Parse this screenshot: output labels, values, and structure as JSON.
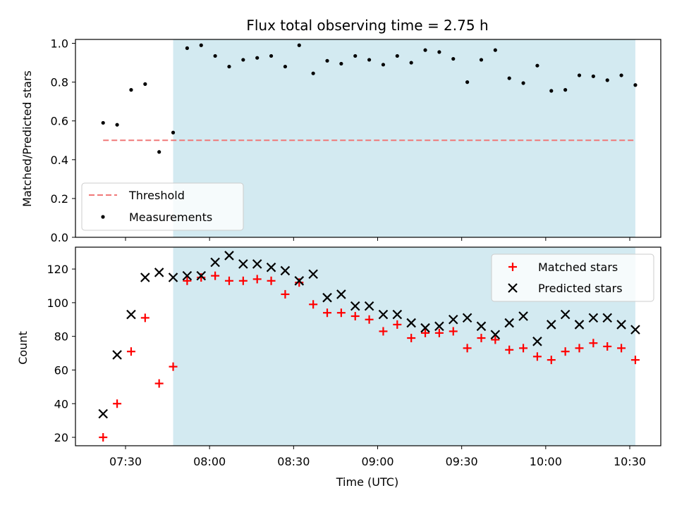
{
  "chart_data": [
    {
      "type": "scatter",
      "title": "Flux total observing time = 2.75 h",
      "xlabel": "",
      "ylabel": "Matched/Predicted stars",
      "ylim": [
        0,
        1.02
      ],
      "yticks": [
        "0.0",
        "0.2",
        "0.4",
        "0.6",
        "0.8",
        "1.0"
      ],
      "shaded_interval": [
        "07:47",
        "10:32"
      ],
      "shade_color": "#d3eaf1",
      "legend": {
        "position": "lower-left",
        "entries": [
          "Threshold",
          "Measurements"
        ]
      },
      "series": [
        {
          "name": "Threshold",
          "style": "dashed-line",
          "color": "#f07878",
          "x": [
            "07:22",
            "10:32"
          ],
          "y": [
            0.5,
            0.5
          ]
        },
        {
          "name": "Measurements",
          "style": "dot",
          "color": "#000000",
          "x": [
            "07:22",
            "07:27",
            "07:32",
            "07:37",
            "07:42",
            "07:47",
            "07:52",
            "07:57",
            "08:02",
            "08:07",
            "08:12",
            "08:17",
            "08:22",
            "08:27",
            "08:32",
            "08:37",
            "08:42",
            "08:47",
            "08:52",
            "08:57",
            "09:02",
            "09:07",
            "09:12",
            "09:17",
            "09:22",
            "09:27",
            "09:32",
            "09:37",
            "09:42",
            "09:47",
            "09:52",
            "09:57",
            "10:02",
            "10:07",
            "10:12",
            "10:17",
            "10:22",
            "10:27",
            "10:32"
          ],
          "y": [
            0.59,
            0.58,
            0.76,
            0.79,
            0.44,
            0.54,
            0.975,
            0.99,
            0.935,
            0.88,
            0.915,
            0.925,
            0.935,
            0.88,
            0.99,
            0.845,
            0.91,
            0.895,
            0.935,
            0.915,
            0.89,
            0.935,
            0.9,
            0.965,
            0.955,
            0.92,
            0.8,
            0.915,
            0.965,
            0.82,
            0.795,
            0.885,
            0.755,
            0.76,
            0.835,
            0.83,
            0.81,
            0.835,
            0.785
          ]
        }
      ]
    },
    {
      "type": "scatter",
      "title": "",
      "xlabel": "Time (UTC)",
      "ylabel": "Count",
      "ylim": [
        15,
        133
      ],
      "yticks": [
        "20",
        "40",
        "60",
        "80",
        "100",
        "120"
      ],
      "xticks": [
        "07:30",
        "08:00",
        "08:30",
        "09:00",
        "09:30",
        "10:00",
        "10:30"
      ],
      "shaded_interval": [
        "07:47",
        "10:32"
      ],
      "shade_color": "#d3eaf1",
      "legend": {
        "position": "top-right",
        "entries": [
          "Matched stars",
          "Predicted stars"
        ]
      },
      "series": [
        {
          "name": "Matched stars",
          "marker": "plus",
          "color": "#ff0000",
          "x": [
            "07:22",
            "07:27",
            "07:32",
            "07:37",
            "07:42",
            "07:47",
            "07:52",
            "07:57",
            "08:02",
            "08:07",
            "08:12",
            "08:17",
            "08:22",
            "08:27",
            "08:32",
            "08:37",
            "08:42",
            "08:47",
            "08:52",
            "08:57",
            "09:02",
            "09:07",
            "09:12",
            "09:17",
            "09:22",
            "09:27",
            "09:32",
            "09:37",
            "09:42",
            "09:47",
            "09:52",
            "09:57",
            "10:02",
            "10:07",
            "10:12",
            "10:17",
            "10:22",
            "10:27",
            "10:32"
          ],
          "y": [
            20,
            40,
            71,
            91,
            52,
            62,
            113,
            115,
            116,
            113,
            113,
            114,
            113,
            105,
            112,
            99,
            94,
            94,
            92,
            90,
            83,
            87,
            79,
            82,
            82,
            83,
            73,
            79,
            78,
            72,
            73,
            68,
            66,
            71,
            73,
            76,
            74,
            73,
            66
          ]
        },
        {
          "name": "Predicted stars",
          "marker": "x",
          "color": "#000000",
          "x": [
            "07:22",
            "07:27",
            "07:32",
            "07:37",
            "07:42",
            "07:47",
            "07:52",
            "07:57",
            "08:02",
            "08:07",
            "08:12",
            "08:17",
            "08:22",
            "08:27",
            "08:32",
            "08:37",
            "08:42",
            "08:47",
            "08:52",
            "08:57",
            "09:02",
            "09:07",
            "09:12",
            "09:17",
            "09:22",
            "09:27",
            "09:32",
            "09:37",
            "09:42",
            "09:47",
            "09:52",
            "09:57",
            "10:02",
            "10:07",
            "10:12",
            "10:17",
            "10:22",
            "10:27",
            "10:32"
          ],
          "y": [
            34,
            69,
            93,
            115,
            118,
            115,
            116,
            116,
            124,
            128,
            123,
            123,
            121,
            119,
            113,
            117,
            103,
            105,
            98,
            98,
            93,
            93,
            88,
            85,
            86,
            90,
            91,
            86,
            81,
            88,
            92,
            77,
            87,
            93,
            87,
            91,
            91,
            87,
            84
          ]
        }
      ]
    }
  ]
}
